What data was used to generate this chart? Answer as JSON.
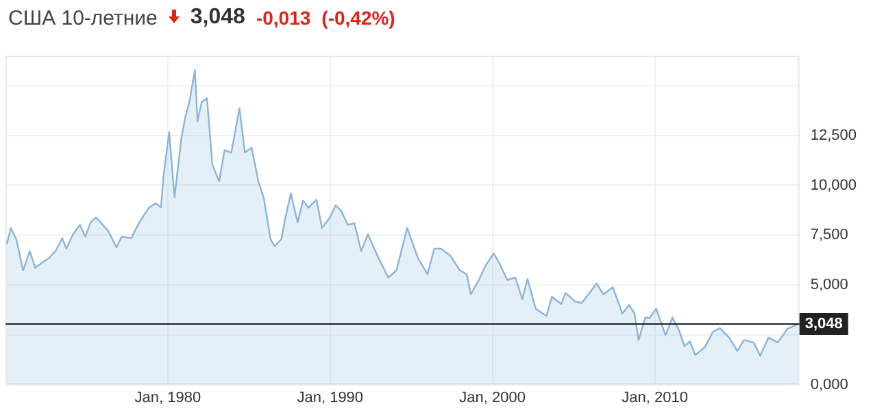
{
  "chart_data": {
    "type": "area",
    "title": "США 10-летние",
    "annotations": [
      "3,048",
      "-0,013",
      "(-0,42%)"
    ],
    "x": [
      "1970-02",
      "1970-05",
      "1970-09",
      "1971-02",
      "1971-07",
      "1971-11",
      "1972-05",
      "1972-09",
      "1973-02",
      "1973-07",
      "1973-10",
      "1974-03",
      "1974-08",
      "1974-12",
      "1975-04",
      "1975-08",
      "1976-05",
      "1976-11",
      "1977-03",
      "1977-10",
      "1978-04",
      "1978-11",
      "1979-04",
      "1979-08",
      "1979-10",
      "1980-02",
      "1980-06",
      "1980-11",
      "1981-02",
      "1981-05",
      "1981-09",
      "1981-11",
      "1982-02",
      "1982-06",
      "1982-10",
      "1983-03",
      "1983-07",
      "1983-12",
      "1984-06",
      "1984-10",
      "1985-03",
      "1985-08",
      "1985-12",
      "1986-05",
      "1986-08",
      "1987-01",
      "1987-04",
      "1987-08",
      "1988-01",
      "1988-05",
      "1988-09",
      "1989-03",
      "1989-07",
      "1990-01",
      "1990-05",
      "1990-09",
      "1991-02",
      "1991-07",
      "1991-12",
      "1992-05",
      "1992-12",
      "1993-08",
      "1994-02",
      "1994-10",
      "1995-06",
      "1996-01",
      "1996-06",
      "1996-11",
      "1997-06",
      "1998-01",
      "1998-06",
      "1998-09",
      "1999-03",
      "1999-08",
      "2000-02",
      "2000-06",
      "2000-12",
      "2001-06",
      "2001-11",
      "2002-03",
      "2002-09",
      "2003-05",
      "2003-09",
      "2004-04",
      "2004-07",
      "2005-02",
      "2005-07",
      "2005-12",
      "2006-06",
      "2006-11",
      "2007-06",
      "2008-01",
      "2008-06",
      "2008-10",
      "2009-01",
      "2009-06",
      "2009-09",
      "2010-02",
      "2010-09",
      "2011-02",
      "2011-07",
      "2011-11",
      "2012-03",
      "2012-07",
      "2013-02",
      "2013-08",
      "2014-01",
      "2014-08",
      "2015-02",
      "2015-07",
      "2016-02",
      "2016-07",
      "2017-01",
      "2017-08",
      "2018-03",
      "2018-11"
    ],
    "series": [
      {
        "color": "#8ab4dc",
        "values": [
          7.06,
          7.86,
          7.3,
          5.73,
          6.7,
          5.86,
          6.17,
          6.34,
          6.7,
          7.35,
          6.82,
          7.54,
          8.02,
          7.42,
          8.14,
          8.39,
          7.71,
          6.89,
          7.42,
          7.35,
          8.14,
          8.87,
          9.1,
          8.9,
          10.55,
          12.67,
          9.4,
          12.36,
          13.45,
          14.17,
          15.78,
          13.2,
          14.17,
          14.36,
          11.04,
          10.19,
          11.76,
          11.64,
          13.86,
          11.64,
          11.88,
          10.19,
          9.35,
          7.3,
          6.94,
          7.3,
          8.39,
          9.59,
          8.14,
          9.23,
          8.87,
          9.28,
          7.86,
          8.39,
          8.99,
          8.75,
          8.02,
          8.1,
          6.7,
          7.54,
          6.46,
          5.37,
          5.73,
          7.86,
          6.34,
          5.54,
          6.82,
          6.82,
          6.46,
          5.73,
          5.54,
          4.53,
          5.25,
          5.98,
          6.58,
          6.1,
          5.25,
          5.37,
          4.29,
          5.3,
          3.81,
          3.45,
          4.41,
          4.05,
          4.6,
          4.17,
          4.1,
          4.53,
          5.08,
          4.53,
          4.89,
          3.57,
          4.0,
          3.57,
          2.24,
          3.37,
          3.33,
          3.81,
          2.48,
          3.37,
          2.72,
          1.93,
          2.17,
          1.49,
          1.88,
          2.65,
          2.84,
          2.36,
          1.69,
          2.24,
          2.12,
          1.45,
          2.36,
          2.12,
          2.8,
          3.05
        ]
      }
    ],
    "xlim": [
      "1970-01",
      "2018-12"
    ],
    "xticks": [
      {
        "value": "1980-01",
        "label": "Jan, 1980"
      },
      {
        "value": "1990-01",
        "label": "Jan, 1990"
      },
      {
        "value": "2000-01",
        "label": "Jan, 2000"
      },
      {
        "value": "2010-01",
        "label": "Jan, 2010"
      }
    ],
    "ylim": [
      0,
      16.5
    ],
    "yticks": [
      {
        "value": 0,
        "label": "0,000"
      },
      {
        "value": 2.5,
        "label": null
      },
      {
        "value": 5,
        "label": "5,000"
      },
      {
        "value": 7.5,
        "label": "7,500"
      },
      {
        "value": 10,
        "label": "10,000"
      },
      {
        "value": 12.5,
        "label": "12,500"
      },
      {
        "value": 15,
        "label": null
      }
    ],
    "ref_lines": [
      {
        "axis": "y",
        "value": 3.048,
        "label": "3,048",
        "color": "#222222"
      }
    ],
    "grid": true,
    "legend": false
  }
}
